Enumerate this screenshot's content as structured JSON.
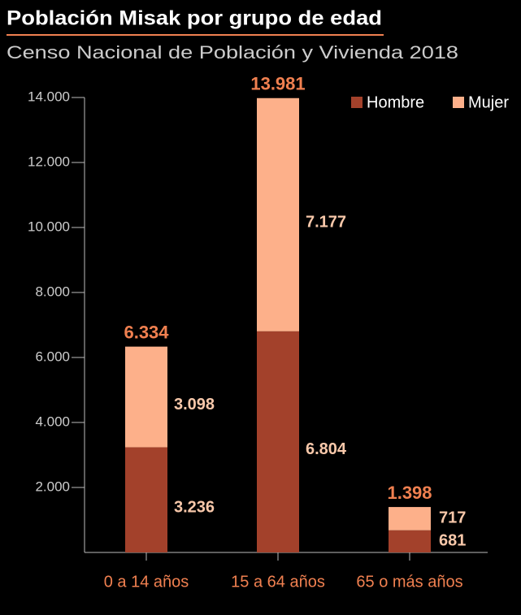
{
  "chart_data": {
    "type": "stacked_bar",
    "title": "Población Misak por grupo de edad",
    "subtitle": "Censo Nacional de Población y Vivienda 2018",
    "categories": [
      "0 a 14 años",
      "15 a 64 años",
      "65 o más años"
    ],
    "series": [
      {
        "name": "Hombre",
        "color": "#a3412b",
        "values": [
          3236,
          6804,
          681
        ],
        "value_labels": [
          "3.236",
          "6.804",
          "681"
        ]
      },
      {
        "name": "Mujer",
        "color": "#fdb08a",
        "values": [
          3098,
          7177,
          717
        ],
        "value_labels": [
          "3.098",
          "7.177",
          "717"
        ]
      }
    ],
    "totals": {
      "values": [
        6334,
        13981,
        1398
      ],
      "value_labels": [
        "6.334",
        "13.981",
        "1.398"
      ]
    },
    "ylim": [
      0,
      14000
    ],
    "yticks": [
      {
        "value": 2000,
        "label": "2.000"
      },
      {
        "value": 4000,
        "label": "4.000"
      },
      {
        "value": 6000,
        "label": "6.000"
      },
      {
        "value": 8000,
        "label": "8.000"
      },
      {
        "value": 10000,
        "label": "10.000"
      },
      {
        "value": 12000,
        "label": "12.000"
      },
      {
        "value": 14000,
        "label": "14.000"
      }
    ],
    "legend": "top-right"
  }
}
